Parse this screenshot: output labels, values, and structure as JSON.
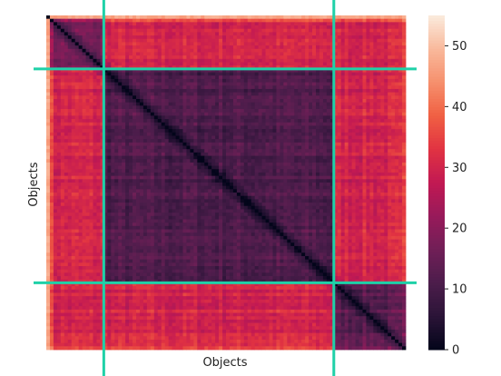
{
  "chart_data": {
    "type": "heatmap",
    "title": "",
    "xlabel": "Objects",
    "ylabel": "Objects",
    "n_objects": 100,
    "colorbar": {
      "range": [
        0,
        55
      ],
      "ticks": [
        0,
        10,
        20,
        30,
        40,
        50
      ],
      "colormap": "rocket",
      "stops": [
        "#03051a",
        "#2b1437",
        "#4c1d4b",
        "#711f57",
        "#981a5a",
        "#c21953",
        "#e13342",
        "#f06043",
        "#f6906d",
        "#f9b99c",
        "#faebdd"
      ]
    },
    "grid": false,
    "structure": {
      "description_values": {
        "diagonal": 0,
        "first_block_end_index": 16,
        "second_block_end_index": 80,
        "within_block_mean": 13,
        "between_block_mean": 30,
        "edge_row_max": 55
      }
    },
    "divider_lines": {
      "color": "#1fd1a8",
      "vertical_at_index": [
        16,
        80
      ],
      "horizontal_at_index": [
        16,
        80
      ]
    }
  }
}
